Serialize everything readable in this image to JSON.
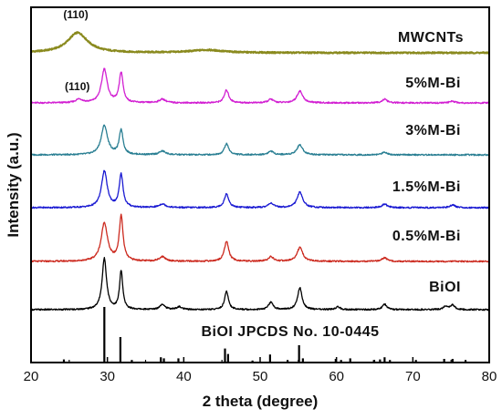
{
  "chart_data": {
    "type": "line",
    "xlabel": "2 theta (degree)",
    "ylabel": "Intensity (a.u.)",
    "xlim": [
      20,
      80
    ],
    "x_ticks": [
      "20",
      "30",
      "40",
      "50",
      "60",
      "70",
      "80"
    ],
    "grid": false,
    "series": [
      {
        "name": "MWCNTs",
        "color": "#8a8a1e",
        "peaks": [
          {
            "x": 26.1,
            "intensity": 22,
            "width": 1.6
          },
          {
            "x": 43.0,
            "intensity": 3,
            "width": 2.5
          }
        ]
      },
      {
        "name": "5%M-Bi",
        "color": "#d21fd2",
        "peaks": [
          {
            "x": 26.3,
            "intensity": 4,
            "width": 0.5
          },
          {
            "x": 29.6,
            "intensity": 37,
            "width": 0.45
          },
          {
            "x": 31.8,
            "intensity": 33,
            "width": 0.3
          },
          {
            "x": 37.2,
            "intensity": 4,
            "width": 0.5
          },
          {
            "x": 45.6,
            "intensity": 14,
            "width": 0.35
          },
          {
            "x": 51.4,
            "intensity": 4,
            "width": 0.4
          },
          {
            "x": 55.2,
            "intensity": 13,
            "width": 0.45
          },
          {
            "x": 66.3,
            "intensity": 4,
            "width": 0.4
          },
          {
            "x": 75.2,
            "intensity": 2,
            "width": 0.4
          }
        ]
      },
      {
        "name": "3%M-Bi",
        "color": "#2a7f93",
        "peaks": [
          {
            "x": 29.6,
            "intensity": 32,
            "width": 0.5
          },
          {
            "x": 31.8,
            "intensity": 27,
            "width": 0.3
          },
          {
            "x": 37.2,
            "intensity": 4,
            "width": 0.5
          },
          {
            "x": 45.6,
            "intensity": 12,
            "width": 0.35
          },
          {
            "x": 51.4,
            "intensity": 4,
            "width": 0.4
          },
          {
            "x": 55.2,
            "intensity": 11,
            "width": 0.45
          },
          {
            "x": 66.3,
            "intensity": 3,
            "width": 0.4
          }
        ]
      },
      {
        "name": "1.5%M-Bi",
        "color": "#1a1ad2",
        "peaks": [
          {
            "x": 29.6,
            "intensity": 40,
            "width": 0.45
          },
          {
            "x": 31.8,
            "intensity": 36,
            "width": 0.3
          },
          {
            "x": 37.2,
            "intensity": 4,
            "width": 0.5
          },
          {
            "x": 45.6,
            "intensity": 15,
            "width": 0.35
          },
          {
            "x": 51.4,
            "intensity": 5,
            "width": 0.4
          },
          {
            "x": 55.2,
            "intensity": 17,
            "width": 0.45
          },
          {
            "x": 66.3,
            "intensity": 4,
            "width": 0.4
          },
          {
            "x": 75.2,
            "intensity": 3,
            "width": 0.4
          }
        ]
      },
      {
        "name": "0.5%M-Bi",
        "color": "#cc2a1f",
        "peaks": [
          {
            "x": 29.6,
            "intensity": 42,
            "width": 0.5
          },
          {
            "x": 31.8,
            "intensity": 49,
            "width": 0.3
          },
          {
            "x": 37.2,
            "intensity": 5,
            "width": 0.5
          },
          {
            "x": 45.6,
            "intensity": 22,
            "width": 0.35
          },
          {
            "x": 51.4,
            "intensity": 5,
            "width": 0.4
          },
          {
            "x": 55.2,
            "intensity": 15,
            "width": 0.45
          },
          {
            "x": 66.3,
            "intensity": 4,
            "width": 0.4
          }
        ]
      },
      {
        "name": "BiOI",
        "color": "#000000",
        "peaks": [
          {
            "x": 29.6,
            "intensity": 56,
            "width": 0.35
          },
          {
            "x": 31.8,
            "intensity": 42,
            "width": 0.25
          },
          {
            "x": 37.2,
            "intensity": 6,
            "width": 0.4
          },
          {
            "x": 39.4,
            "intensity": 3,
            "width": 0.4
          },
          {
            "x": 45.6,
            "intensity": 20,
            "width": 0.3
          },
          {
            "x": 51.4,
            "intensity": 8,
            "width": 0.35
          },
          {
            "x": 55.2,
            "intensity": 24,
            "width": 0.35
          },
          {
            "x": 60.2,
            "intensity": 3,
            "width": 0.35
          },
          {
            "x": 66.3,
            "intensity": 6,
            "width": 0.35
          },
          {
            "x": 74.3,
            "intensity": 4,
            "width": 0.35
          },
          {
            "x": 75.2,
            "intensity": 5,
            "width": 0.35
          }
        ]
      }
    ],
    "reference": {
      "name": "BiOI JPCDS No. 10-0445",
      "color": "#000000",
      "lines": [
        {
          "x": 24.3,
          "intensity": 4
        },
        {
          "x": 29.6,
          "intensity": 100
        },
        {
          "x": 31.7,
          "intensity": 45
        },
        {
          "x": 33.2,
          "intensity": 3
        },
        {
          "x": 37.0,
          "intensity": 8
        },
        {
          "x": 37.4,
          "intensity": 6
        },
        {
          "x": 39.3,
          "intensity": 6
        },
        {
          "x": 45.4,
          "intensity": 24
        },
        {
          "x": 45.8,
          "intensity": 14
        },
        {
          "x": 49.0,
          "intensity": 2
        },
        {
          "x": 51.3,
          "intensity": 13
        },
        {
          "x": 53.6,
          "intensity": 3
        },
        {
          "x": 55.1,
          "intensity": 30
        },
        {
          "x": 55.6,
          "intensity": 6
        },
        {
          "x": 59.9,
          "intensity": 5
        },
        {
          "x": 60.6,
          "intensity": 3
        },
        {
          "x": 61.8,
          "intensity": 6
        },
        {
          "x": 64.9,
          "intensity": 3
        },
        {
          "x": 65.7,
          "intensity": 4
        },
        {
          "x": 66.3,
          "intensity": 8
        },
        {
          "x": 67.0,
          "intensity": 3
        },
        {
          "x": 70.4,
          "intensity": 3
        },
        {
          "x": 74.1,
          "intensity": 5
        },
        {
          "x": 75.2,
          "intensity": 5
        },
        {
          "x": 76.9,
          "intensity": 3
        }
      ]
    },
    "annotations": [
      {
        "text": "(110)",
        "series": "MWCNTs",
        "x": 26.1
      },
      {
        "text": "(110)",
        "series": "5%M-Bi",
        "x": 26.3
      }
    ]
  }
}
